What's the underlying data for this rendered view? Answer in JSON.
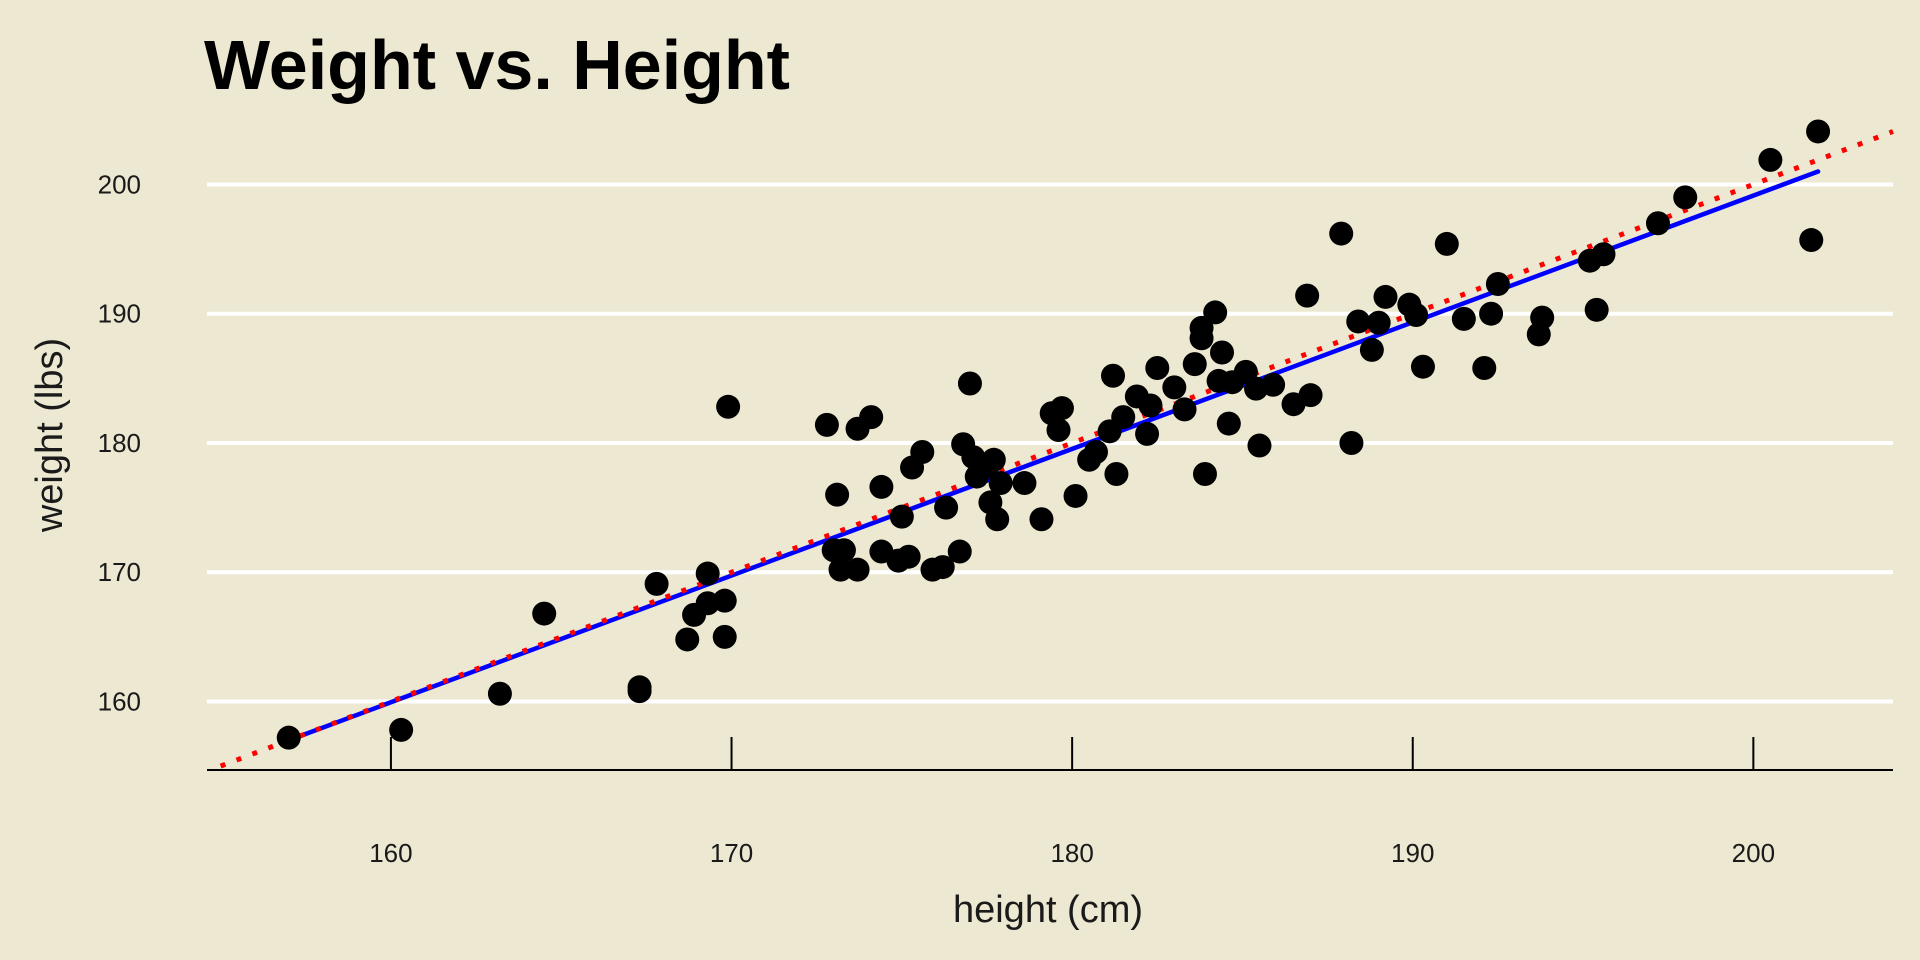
{
  "chart_data": {
    "type": "scatter",
    "title": "Weight vs. Height",
    "xlabel": "height (cm)",
    "ylabel": "weight (lbs)",
    "xlim": [
      154.6,
      204.1
    ],
    "ylim": [
      154.7,
      204.6
    ],
    "x_ticks": [
      160,
      170,
      180,
      190,
      200
    ],
    "y_ticks": [
      160,
      170,
      180,
      190,
      200
    ],
    "grid": "horizontal",
    "legend": "none",
    "colors": {
      "background": "#ece8d1",
      "points": "#000000",
      "fit_line": "#0000ff",
      "dotted_line": "#ff0000",
      "grid": "#ffffff",
      "axis": "#000000"
    },
    "series": [
      {
        "type": "points",
        "x": [
          157.0,
          160.3,
          163.2,
          164.5,
          167.3,
          167.3,
          167.8,
          168.7,
          168.9,
          169.3,
          169.3,
          169.8,
          169.8,
          169.9,
          172.8,
          173.0,
          173.1,
          173.2,
          173.3,
          173.7,
          173.7,
          174.1,
          174.4,
          174.4,
          174.9,
          175.0,
          175.2,
          175.3,
          175.6,
          175.9,
          176.2,
          176.3,
          176.7,
          176.8,
          177.0,
          177.1,
          177.2,
          177.5,
          177.6,
          177.7,
          177.8,
          177.9,
          178.6,
          179.1,
          179.4,
          179.6,
          179.7,
          180.1,
          180.5,
          180.7,
          181.1,
          181.2,
          181.3,
          181.5,
          181.9,
          182.2,
          182.3,
          182.5,
          183.0,
          183.3,
          183.6,
          183.8,
          183.8,
          183.9,
          184.2,
          184.3,
          184.4,
          184.6,
          184.7,
          185.1,
          185.4,
          185.5,
          185.9,
          186.5,
          186.9,
          187.0,
          187.9,
          188.2,
          188.4,
          188.8,
          189.0,
          189.2,
          189.9,
          190.1,
          190.3,
          191.0,
          191.5,
          192.1,
          192.3,
          192.5,
          193.7,
          193.8,
          195.2,
          195.4,
          195.6,
          197.2,
          198.0,
          200.5,
          201.7,
          201.9
        ],
        "y": [
          157.2,
          157.8,
          160.6,
          166.8,
          160.8,
          161.1,
          169.1,
          164.8,
          166.7,
          167.6,
          169.9,
          165.0,
          167.8,
          182.8,
          181.4,
          171.7,
          176.0,
          170.2,
          171.7,
          170.2,
          181.1,
          182.0,
          176.6,
          171.6,
          170.9,
          174.3,
          171.2,
          178.1,
          179.3,
          170.2,
          170.4,
          175.0,
          171.6,
          179.9,
          184.6,
          178.9,
          177.4,
          178.2,
          175.4,
          178.7,
          174.1,
          176.9,
          176.9,
          174.1,
          182.3,
          181.0,
          182.7,
          175.9,
          178.7,
          179.3,
          180.9,
          185.2,
          177.6,
          182.0,
          183.6,
          180.7,
          182.9,
          185.8,
          184.3,
          182.6,
          186.1,
          188.1,
          188.9,
          177.6,
          190.1,
          184.8,
          187.0,
          181.5,
          184.7,
          185.5,
          184.2,
          179.8,
          184.5,
          183.0,
          191.4,
          183.7,
          196.2,
          180.0,
          189.4,
          187.2,
          189.3,
          191.3,
          190.7,
          189.9,
          185.9,
          195.4,
          189.6,
          185.8,
          190.0,
          192.3,
          188.4,
          189.7,
          194.1,
          190.3,
          194.6,
          197.0,
          199.0,
          201.9,
          195.7,
          204.1
        ]
      },
      {
        "type": "line",
        "x": [
          157.0,
          201.9
        ],
        "y": [
          157.0,
          201.0
        ]
      },
      {
        "type": "dotted-line",
        "x": [
          155.0,
          204.1
        ],
        "y": [
          155.0,
          204.1
        ]
      }
    ]
  }
}
